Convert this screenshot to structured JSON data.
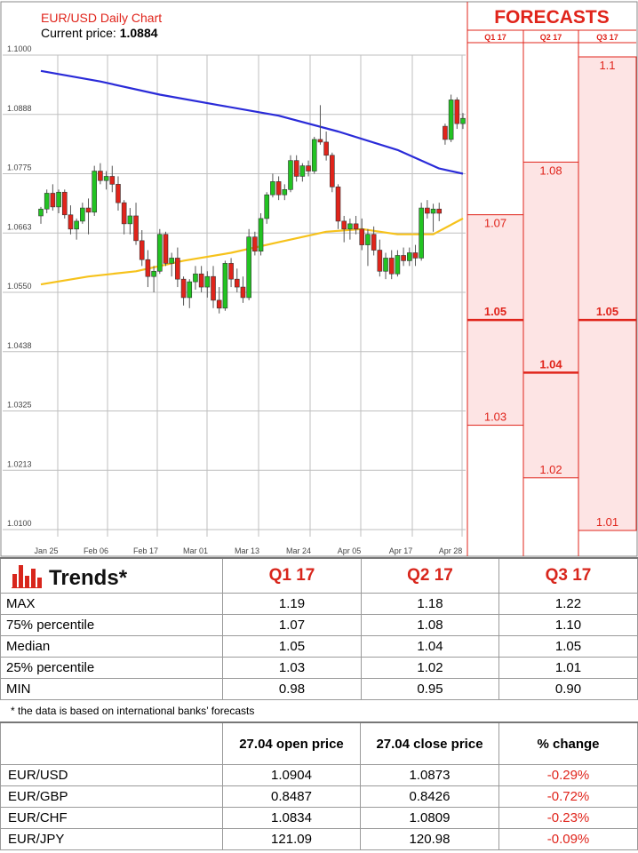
{
  "chart_data": {
    "type": "candlestick",
    "title": "EUR/USD Daily Chart",
    "current_price_label": "Current price:",
    "current_price_value": "1.0884",
    "y_ticks": [
      "1.1000",
      "1.0888",
      "1.0775",
      "1.0663",
      "1.0550",
      "1.0438",
      "1.0325",
      "1.0213",
      "1.0100"
    ],
    "ylim": [
      1.01,
      1.1
    ],
    "x_ticks": [
      "Jan 25",
      "Feb 06",
      "Feb 17",
      "Mar 01",
      "Mar 13",
      "Mar 24",
      "Apr 05",
      "Apr 17",
      "Apr 28"
    ],
    "candles": [
      [
        1.0695,
        1.0712,
        1.068,
        1.0708
      ],
      [
        1.0708,
        1.0745,
        1.07,
        1.0738
      ],
      [
        1.0738,
        1.0755,
        1.0705,
        1.0712
      ],
      [
        1.0712,
        1.0745,
        1.07,
        1.074
      ],
      [
        1.074,
        1.0745,
        1.069,
        1.0697
      ],
      [
        1.0697,
        1.0715,
        1.066,
        1.067
      ],
      [
        1.067,
        1.069,
        1.065,
        1.0685
      ],
      [
        1.0685,
        1.072,
        1.068,
        1.071
      ],
      [
        1.071,
        1.0728,
        1.066,
        1.0702
      ],
      [
        1.0702,
        1.079,
        1.0695,
        1.078
      ],
      [
        1.078,
        1.0795,
        1.0755,
        1.0762
      ],
      [
        1.0762,
        1.078,
        1.0745,
        1.077
      ],
      [
        1.077,
        1.079,
        1.074,
        1.0755
      ],
      [
        1.0755,
        1.077,
        1.0705,
        1.072
      ],
      [
        1.072,
        1.0725,
        1.066,
        1.068
      ],
      [
        1.068,
        1.071,
        1.066,
        1.0695
      ],
      [
        1.0695,
        1.072,
        1.064,
        1.0648
      ],
      [
        1.0648,
        1.0668,
        1.06,
        1.0612
      ],
      [
        1.0612,
        1.063,
        1.056,
        1.058
      ],
      [
        1.058,
        1.06,
        1.055,
        1.059
      ],
      [
        1.059,
        1.067,
        1.0585,
        1.066
      ],
      [
        1.066,
        1.0665,
        1.06,
        1.0605
      ],
      [
        1.0605,
        1.0625,
        1.058,
        1.0615
      ],
      [
        1.0615,
        1.0635,
        1.056,
        1.0575
      ],
      [
        1.0575,
        1.058,
        1.0525,
        1.054
      ],
      [
        1.054,
        1.0575,
        1.052,
        1.057
      ],
      [
        1.057,
        1.06,
        1.0555,
        1.0585
      ],
      [
        1.0585,
        1.06,
        1.055,
        1.056
      ],
      [
        1.056,
        1.059,
        1.054,
        1.058
      ],
      [
        1.058,
        1.06,
        1.052,
        1.0535
      ],
      [
        1.0535,
        1.056,
        1.051,
        1.052
      ],
      [
        1.052,
        1.061,
        1.0515,
        1.0605
      ],
      [
        1.0605,
        1.0615,
        1.056,
        1.0575
      ],
      [
        1.0575,
        1.0595,
        1.055,
        1.056
      ],
      [
        1.056,
        1.058,
        1.053,
        1.054
      ],
      [
        1.054,
        1.067,
        1.0535,
        1.0655
      ],
      [
        1.0655,
        1.0665,
        1.062,
        1.0628
      ],
      [
        1.0628,
        1.07,
        1.062,
        1.069
      ],
      [
        1.069,
        1.074,
        1.068,
        1.0735
      ],
      [
        1.0735,
        1.0775,
        1.073,
        1.076
      ],
      [
        1.076,
        1.077,
        1.0725,
        1.0735
      ],
      [
        1.0735,
        1.0755,
        1.0725,
        1.0745
      ],
      [
        1.0745,
        1.081,
        1.074,
        1.08
      ],
      [
        1.08,
        1.081,
        1.076,
        1.077
      ],
      [
        1.077,
        1.0795,
        1.076,
        1.079
      ],
      [
        1.079,
        1.08,
        1.077,
        1.078
      ],
      [
        1.078,
        1.0845,
        1.0775,
        1.084
      ],
      [
        1.084,
        1.0905,
        1.083,
        1.0835
      ],
      [
        1.0835,
        1.0855,
        1.08,
        1.081
      ],
      [
        1.081,
        1.0815,
        1.074,
        1.075
      ],
      [
        1.075,
        1.0755,
        1.067,
        1.0685
      ],
      [
        1.0685,
        1.0695,
        1.0645,
        1.067
      ],
      [
        1.067,
        1.069,
        1.065,
        1.068
      ],
      [
        1.068,
        1.0695,
        1.066,
        1.067
      ],
      [
        1.067,
        1.069,
        1.063,
        1.064
      ],
      [
        1.064,
        1.067,
        1.06,
        1.066
      ],
      [
        1.066,
        1.0675,
        1.062,
        1.063
      ],
      [
        1.063,
        1.065,
        1.058,
        1.059
      ],
      [
        1.059,
        1.0625,
        1.0575,
        1.0615
      ],
      [
        1.0615,
        1.063,
        1.0575,
        1.0585
      ],
      [
        1.0585,
        1.063,
        1.058,
        1.062
      ],
      [
        1.062,
        1.0635,
        1.06,
        1.061
      ],
      [
        1.061,
        1.0635,
        1.06,
        1.0625
      ],
      [
        1.0625,
        1.064,
        1.06,
        1.0615
      ],
      [
        1.0615,
        1.072,
        1.061,
        1.071
      ],
      [
        1.071,
        1.0725,
        1.069,
        1.07
      ],
      [
        1.07,
        1.0718,
        1.0665,
        1.0708
      ],
      [
        1.0708,
        1.072,
        1.0685,
        1.07
      ],
      [
        1.0865,
        1.087,
        1.083,
        1.084
      ],
      [
        1.084,
        1.0925,
        1.0835,
        1.0915
      ],
      [
        1.0915,
        1.092,
        1.086,
        1.087
      ],
      [
        1.087,
        1.089,
        1.086,
        1.088
      ]
    ],
    "ma200": [
      [
        0,
        1.097
      ],
      [
        10,
        1.095
      ],
      [
        20,
        1.0925
      ],
      [
        30,
        1.0905
      ],
      [
        40,
        1.0885
      ],
      [
        50,
        1.0855
      ],
      [
        60,
        1.082
      ],
      [
        67,
        1.0785
      ],
      [
        71,
        1.0775
      ]
    ],
    "ma50": [
      [
        0,
        1.0565
      ],
      [
        8,
        1.058
      ],
      [
        16,
        1.059
      ],
      [
        24,
        1.061
      ],
      [
        32,
        1.0625
      ],
      [
        40,
        1.0645
      ],
      [
        48,
        1.0665
      ],
      [
        54,
        1.067
      ],
      [
        60,
        1.066
      ],
      [
        66,
        1.066
      ],
      [
        71,
        1.069
      ]
    ],
    "colors": {
      "up": "#22c322",
      "down": "#e0241b",
      "ma200": "#2a2bd8",
      "ma50": "#f6c21b",
      "accent": "#e0241b"
    },
    "forecasts": {
      "heading": "FORECASTS",
      "columns": [
        {
          "label": "Q1 17",
          "max": 1.07,
          "median": 1.05,
          "min": 1.03,
          "labels": [
            "1.07",
            "1.05",
            "1.03"
          ]
        },
        {
          "label": "Q2 17",
          "max": 1.08,
          "median": 1.04,
          "min": 1.02,
          "labels": [
            "1.08",
            "1.04",
            "1.02"
          ]
        },
        {
          "label": "Q3 17",
          "max": 1.1,
          "median": 1.05,
          "min": 1.01,
          "labels": [
            "1.1",
            "1.05",
            "1.01"
          ]
        }
      ]
    }
  },
  "trends": {
    "title": "Trends*",
    "columns": [
      "Q1 17",
      "Q2 17",
      "Q3 17"
    ],
    "rows": [
      {
        "label": "MAX",
        "values": [
          "1.19",
          "1.18",
          "1.22"
        ]
      },
      {
        "label": "75% percentile",
        "values": [
          "1.07",
          "1.08",
          "1.10"
        ]
      },
      {
        "label": "Median",
        "values": [
          "1.05",
          "1.04",
          "1.05"
        ]
      },
      {
        "label": "25% percentile",
        "values": [
          "1.03",
          "1.02",
          "1.01"
        ]
      },
      {
        "label": "MIN",
        "values": [
          "0.98",
          "0.95",
          "0.90"
        ]
      }
    ],
    "note": "* the data is based on international banks’ forecasts"
  },
  "prices": {
    "headers": [
      "",
      "27.04 open price",
      "27.04 close price",
      "% change"
    ],
    "rows": [
      {
        "pair": "EUR/USD",
        "open": "1.0904",
        "close": "1.0873",
        "change": "-0.29%"
      },
      {
        "pair": "EUR/GBP",
        "open": "0.8487",
        "close": "0.8426",
        "change": "-0.72%"
      },
      {
        "pair": "EUR/CHF",
        "open": "1.0834",
        "close": "1.0809",
        "change": "-0.23%"
      },
      {
        "pair": "EUR/JPY",
        "open": "121.09",
        "close": "120.98",
        "change": "-0.09%"
      }
    ]
  }
}
